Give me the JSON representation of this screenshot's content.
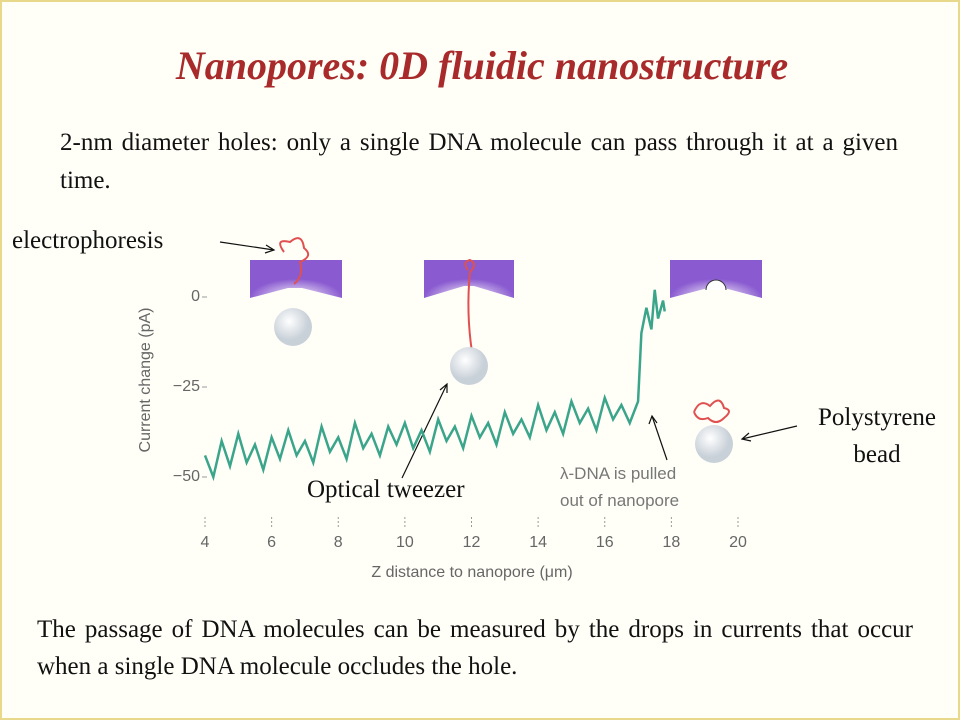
{
  "title": "Nanopores: 0D fluidic nanostructure",
  "intro": "2-nm diameter holes: only a single DNA molecule can pass through it at a given time.",
  "caption": "The passage of DNA molecules can be measured by the drops in currents that occur when a single DNA molecule occludes the hole.",
  "labels": {
    "electrophoresis": "electrophoresis",
    "tweezer": "Optical tweezer",
    "bead": "Polystyrene bead",
    "pulled": "λ-DNA is pulled out of nanopore"
  },
  "chart_data": {
    "type": "line",
    "x_label": "Z distance to nanopore (μm)",
    "y_label": "Current change (pA)",
    "xlim": [
      4,
      20
    ],
    "xticks": [
      4,
      6,
      8,
      10,
      12,
      14,
      16,
      18,
      20
    ],
    "ylim": [
      -55,
      5
    ],
    "yticks": [
      0,
      {
        "value": -25,
        "label": "−25"
      },
      {
        "value": -50,
        "label": "−50"
      }
    ],
    "x": [
      4.0,
      4.25,
      4.5,
      4.75,
      5.0,
      5.25,
      5.5,
      5.75,
      6.0,
      6.25,
      6.5,
      6.75,
      7.0,
      7.25,
      7.5,
      7.75,
      8.0,
      8.25,
      8.5,
      8.75,
      9.0,
      9.25,
      9.5,
      9.75,
      10.0,
      10.25,
      10.5,
      10.75,
      11.0,
      11.25,
      11.5,
      11.75,
      12.0,
      12.25,
      12.5,
      12.75,
      13.0,
      13.25,
      13.5,
      13.75,
      14.0,
      14.25,
      14.5,
      14.75,
      15.0,
      15.25,
      15.5,
      15.75,
      16.0,
      16.25,
      16.5,
      16.75,
      17.0,
      17.1,
      17.25,
      17.4,
      17.5,
      17.6,
      17.75,
      17.8
    ],
    "series": [
      {
        "color": "#3aa58a",
        "values": [
          -44,
          -50,
          -40,
          -47,
          -38,
          -46,
          -41,
          -48,
          -39,
          -45,
          -37,
          -44,
          -40,
          -46,
          -36,
          -43,
          -39,
          -45,
          -35,
          -42,
          -38,
          -44,
          -36,
          -41,
          -35,
          -42,
          -37,
          -43,
          -34,
          -40,
          -36,
          -42,
          -33,
          -39,
          -35,
          -41,
          -32,
          -38,
          -34,
          -39,
          -30,
          -37,
          -32,
          -38,
          -29,
          -35,
          -31,
          -37,
          -28,
          -34,
          -30,
          -35,
          -29,
          -10,
          -3,
          -9,
          2,
          -6,
          -1,
          -4
        ]
      }
    ]
  }
}
